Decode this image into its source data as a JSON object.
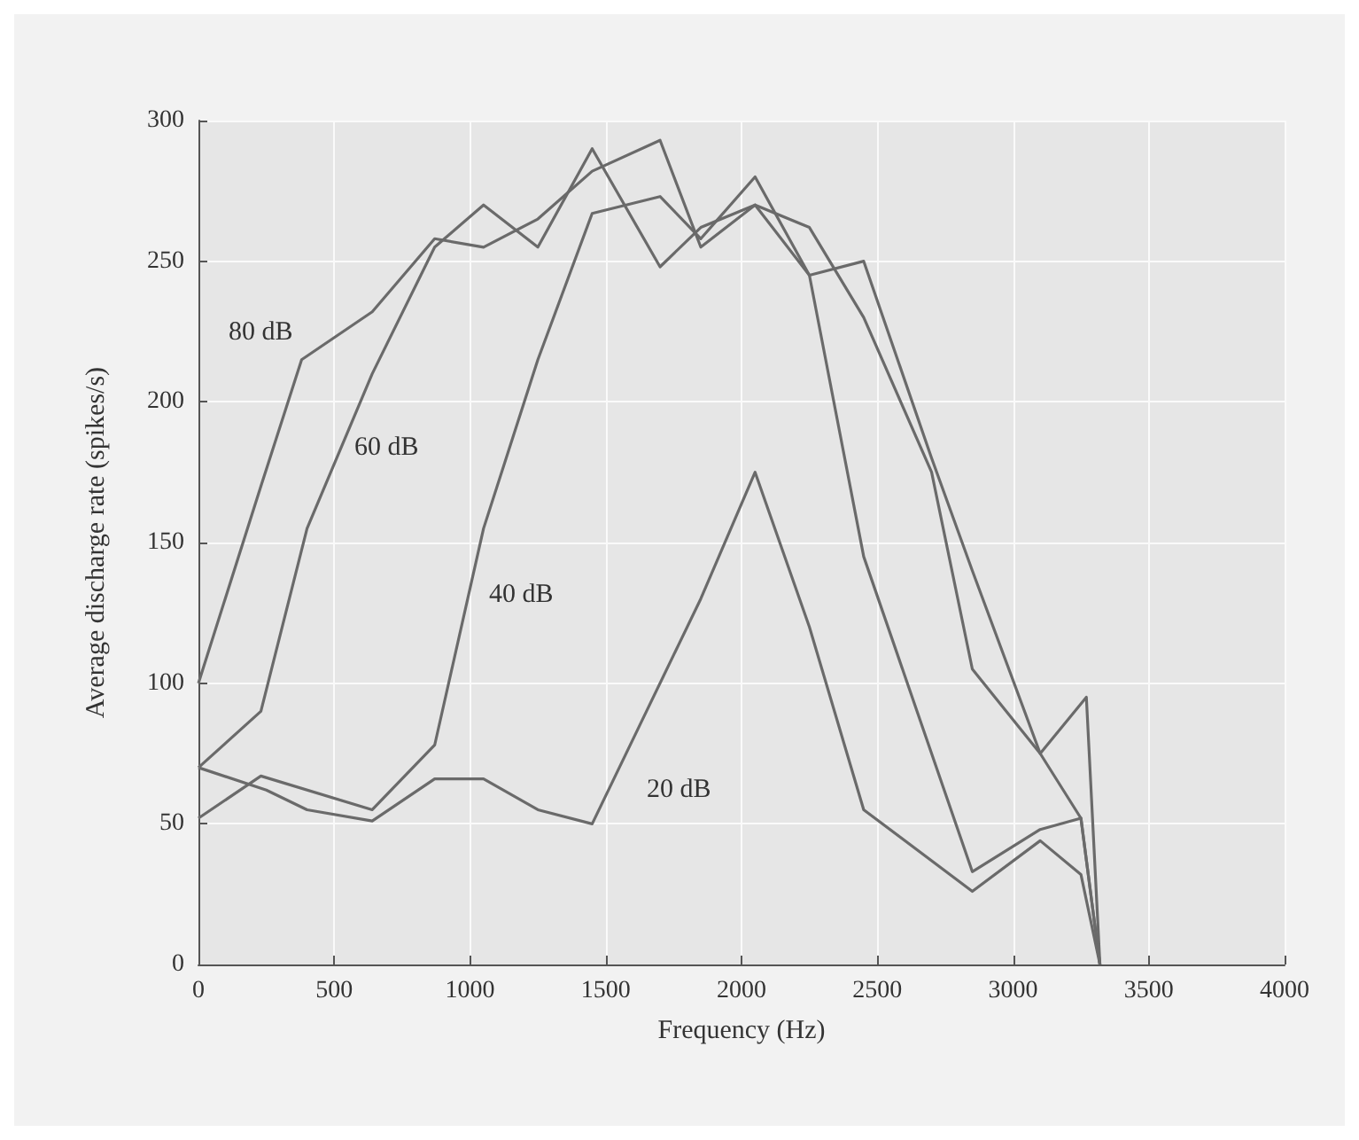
{
  "chart_data": {
    "type": "line",
    "xlabel": "Frequency (Hz)",
    "ylabel": "Average discharge rate (spikes/s)",
    "xlim": [
      0,
      4000
    ],
    "xticks": [
      0,
      500,
      1000,
      1500,
      2000,
      2500,
      3000,
      3500,
      4000
    ],
    "ylim": [
      0,
      300
    ],
    "yticks": [
      0,
      50,
      100,
      150,
      200,
      250,
      300
    ],
    "grid": true,
    "marker": "none",
    "line_style": "solid",
    "series": [
      {
        "name": "80 dB",
        "color": "#6a6a6a",
        "x": [
          0,
          230,
          380,
          640,
          870,
          1050,
          1250,
          1450,
          1700,
          1850,
          2050,
          2250,
          2450,
          2700,
          2850,
          3100,
          3250,
          3320
        ],
        "values": [
          100,
          170,
          215,
          232,
          258,
          255,
          265,
          282,
          293,
          255,
          270,
          245,
          250,
          180,
          140,
          75,
          52,
          0
        ]
      },
      {
        "name": "60 dB",
        "color": "#6a6a6a",
        "x": [
          0,
          230,
          400,
          640,
          870,
          1050,
          1250,
          1450,
          1700,
          1850,
          2050,
          2250,
          2450,
          2700,
          2850,
          3100,
          3270,
          3320
        ],
        "values": [
          70,
          90,
          155,
          210,
          255,
          270,
          255,
          290,
          248,
          262,
          270,
          262,
          230,
          175,
          105,
          75,
          95,
          0
        ]
      },
      {
        "name": "40 dB",
        "color": "#6a6a6a",
        "x": [
          0,
          230,
          640,
          870,
          1050,
          1250,
          1450,
          1700,
          1850,
          2050,
          2250,
          2450,
          2850,
          3100,
          3250,
          3320
        ],
        "values": [
          52,
          67,
          55,
          78,
          155,
          215,
          267,
          273,
          258,
          280,
          245,
          145,
          33,
          48,
          52,
          0
        ]
      },
      {
        "name": "20 dB",
        "color": "#6a6a6a",
        "x": [
          0,
          250,
          400,
          640,
          870,
          1050,
          1250,
          1450,
          1650,
          1850,
          2050,
          2250,
          2450,
          2850,
          3100,
          3250,
          3320
        ],
        "values": [
          70,
          62,
          55,
          51,
          66,
          66,
          55,
          50,
          90,
          130,
          175,
          120,
          55,
          26,
          44,
          32,
          0
        ]
      }
    ]
  }
}
